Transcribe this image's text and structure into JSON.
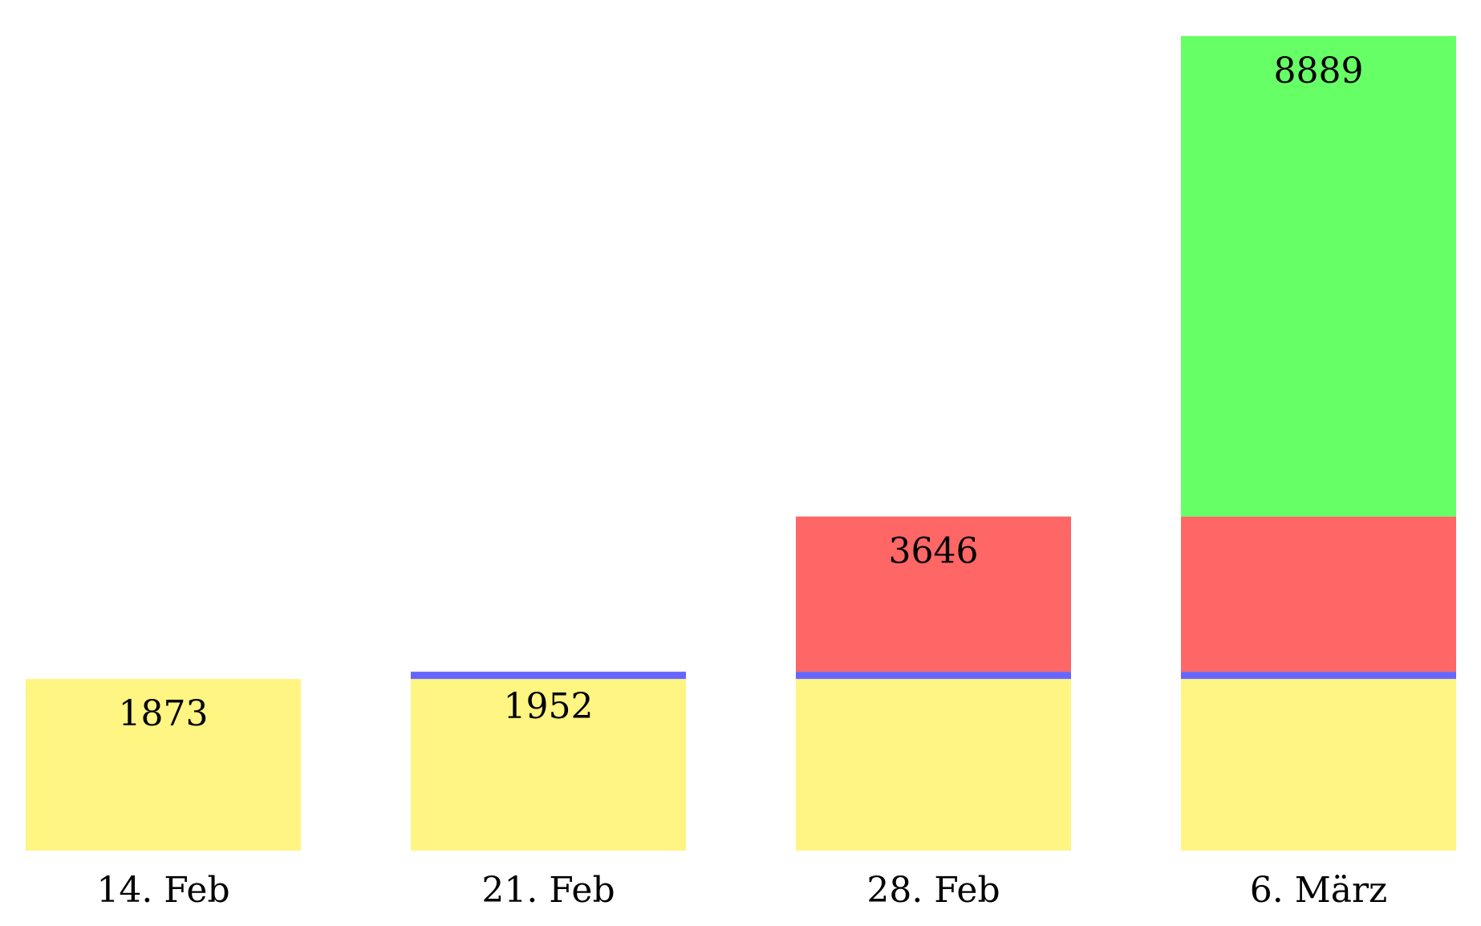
{
  "chart_data": {
    "type": "bar",
    "stacked": true,
    "categories": [
      "14. Feb",
      "21. Feb",
      "28. Feb",
      "6. März"
    ],
    "series": [
      {
        "values": [
          1873,
          1873,
          1873,
          1873
        ],
        "color": "#fff582"
      },
      {
        "values": [
          0,
          79,
          79,
          79
        ],
        "color": "#6666ff"
      },
      {
        "values": [
          0,
          0,
          1694,
          1694
        ],
        "color": "#ff6666"
      },
      {
        "values": [
          0,
          0,
          0,
          5243
        ],
        "color": "#66ff66"
      }
    ],
    "totals": [
      1873,
      1952,
      3646,
      8889
    ],
    "data_labels": [
      "1873",
      "1952",
      "3646",
      "8889"
    ],
    "ylim": [
      0,
      8889
    ],
    "grid": false,
    "legend": "none"
  }
}
